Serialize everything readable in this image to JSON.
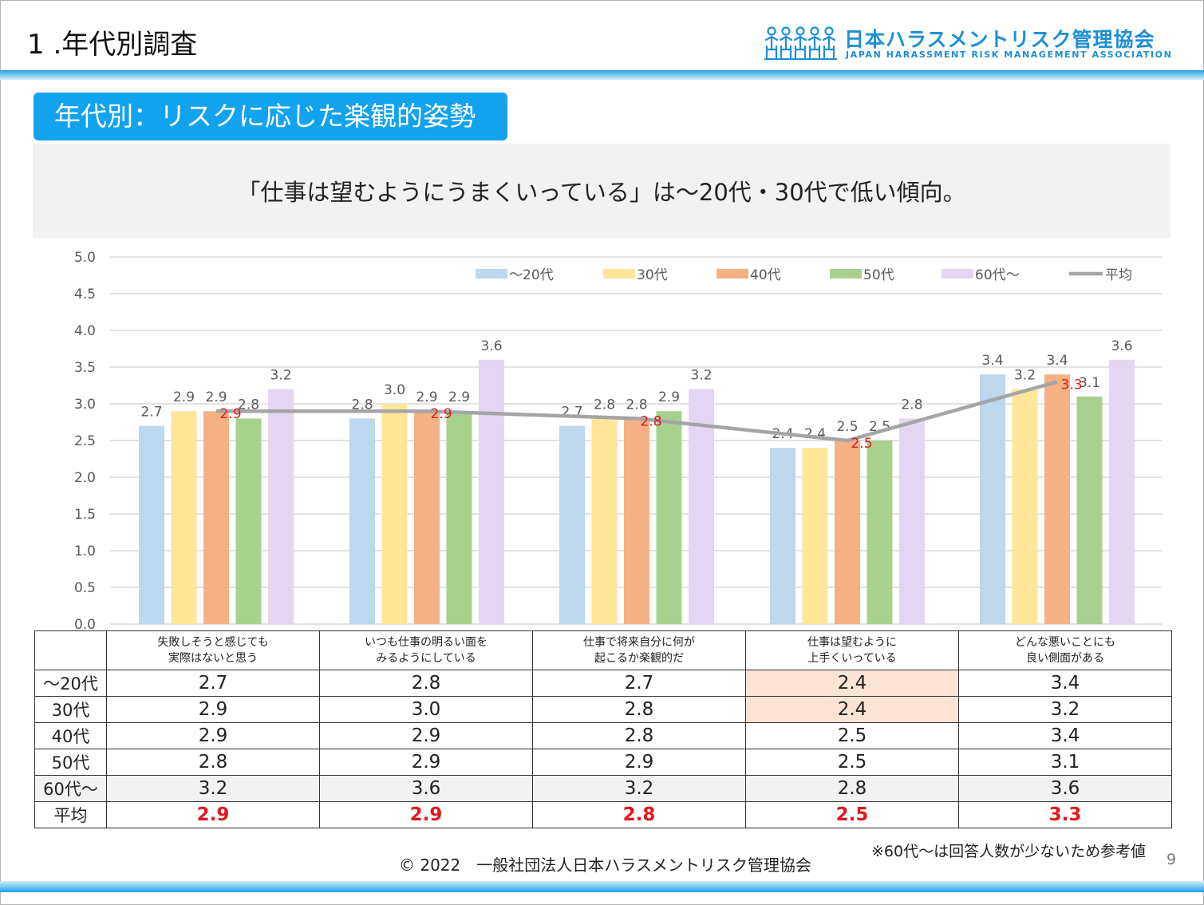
{
  "header": {
    "title": "1 .年代別調査",
    "org_name_jp": "日本ハラスメントリスク管理協会",
    "org_name_en": "JAPAN HARASSMENT RISK MANAGEMENT ASSOCIATION"
  },
  "section_label": "年代別：リスクに応じた楽観的姿勢",
  "headline": "「仕事は望むようにうまくいっている」は～20代・30代で低い傾向。",
  "chart_data": {
    "type": "bar",
    "categories": [
      "失敗しそうと感じても\n実際はないと思う",
      "いつも仕事の明るい面を\nみるようにしている",
      "仕事で将来自分に何が\n起こるか楽観的だ",
      "仕事は望むように\n上手くいっている",
      "どんな悪いことにも\n良い側面がある"
    ],
    "series": [
      {
        "name": "～20代",
        "color": "#bdd7ee",
        "values": [
          2.7,
          2.8,
          2.7,
          2.4,
          3.4
        ],
        "labels": [
          "2.7",
          "2.8",
          "2.7",
          "2.4",
          "3.4"
        ]
      },
      {
        "name": "30代",
        "color": "#ffe699",
        "values": [
          2.9,
          3.0,
          2.8,
          2.4,
          3.2
        ],
        "labels": [
          "2.9",
          "3.0",
          "2.8",
          "2.4",
          "3.2"
        ]
      },
      {
        "name": "40代",
        "color": "#f4b183",
        "values": [
          2.9,
          2.9,
          2.8,
          2.5,
          3.4
        ],
        "labels": [
          "2.9",
          "2.9",
          "2.8",
          "2.5",
          "3.4"
        ]
      },
      {
        "name": "50代",
        "color": "#a9d18e",
        "values": [
          2.8,
          2.9,
          2.9,
          2.5,
          3.1
        ],
        "labels": [
          "2.8",
          "2.9",
          "2.9",
          "2.5",
          "3.1"
        ]
      },
      {
        "name": "60代～",
        "color": "#e4d5f2",
        "values": [
          3.2,
          3.6,
          3.2,
          2.8,
          3.6
        ],
        "labels": [
          "3.2",
          "3.6",
          "3.2",
          "2.8",
          "3.6"
        ]
      }
    ],
    "average": {
      "name": "平均",
      "type": "line",
      "color": "#a5a5a5",
      "label_color": "#e0191e",
      "values": [
        2.9,
        2.9,
        2.8,
        2.5,
        3.3
      ],
      "labels": [
        "2.9",
        "2.9",
        "2.8",
        "2.5",
        "3.3"
      ]
    },
    "ylim": [
      0,
      5.0
    ],
    "yticks": [
      "0.0",
      "0.5",
      "1.0",
      "1.5",
      "2.0",
      "2.5",
      "3.0",
      "3.5",
      "4.0",
      "4.5",
      "5.0"
    ],
    "grid": true,
    "legend_position": "top-right"
  },
  "table": {
    "rows": [
      {
        "label": "～20代",
        "values": [
          "2.7",
          "2.8",
          "2.7",
          "2.4",
          "3.4"
        ]
      },
      {
        "label": "30代",
        "values": [
          "2.9",
          "3.0",
          "2.8",
          "2.4",
          "3.2"
        ]
      },
      {
        "label": "40代",
        "values": [
          "2.9",
          "2.9",
          "2.8",
          "2.5",
          "3.4"
        ]
      },
      {
        "label": "50代",
        "values": [
          "2.8",
          "2.9",
          "2.9",
          "2.5",
          "3.1"
        ]
      },
      {
        "label": "60代～",
        "values": [
          "3.2",
          "3.6",
          "3.2",
          "2.8",
          "3.6"
        ]
      },
      {
        "label": "平均",
        "values": [
          "2.9",
          "2.9",
          "2.8",
          "2.5",
          "3.3"
        ]
      }
    ],
    "highlight_color": "#fbe4d6"
  },
  "footnote": "※60代～は回答人数が少ないため参考値",
  "copyright": "© 2022　一般社団法人日本ハラスメントリスク管理協会",
  "page_number": "9"
}
